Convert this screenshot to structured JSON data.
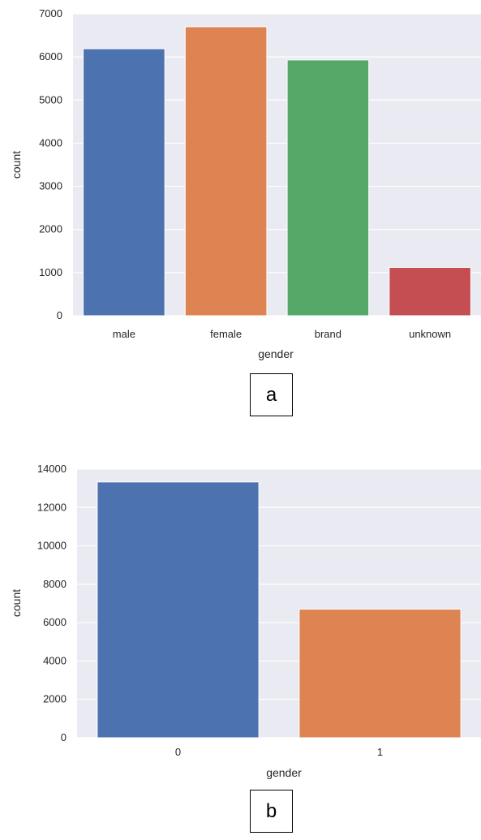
{
  "chart_data": [
    {
      "type": "bar",
      "caption": "a",
      "categories": [
        "male",
        "female",
        "brand",
        "unknown"
      ],
      "values": [
        6190,
        6700,
        5930,
        1120
      ],
      "colors": [
        "#4c72b0",
        "#dd8452",
        "#55a868",
        "#c44e52"
      ],
      "xlabel": "gender",
      "ylabel": "count",
      "ylim": [
        0,
        7000
      ],
      "yticks": [
        "0",
        "1000",
        "2000",
        "3000",
        "4000",
        "5000",
        "6000",
        "7000"
      ],
      "grid": true,
      "background": "#eaeaf2"
    },
    {
      "type": "bar",
      "caption": "b",
      "categories": [
        "0",
        "1"
      ],
      "values": [
        13330,
        6700
      ],
      "colors": [
        "#4c72b0",
        "#dd8452"
      ],
      "xlabel": "gender",
      "ylabel": "count",
      "ylim": [
        0,
        14000
      ],
      "yticks": [
        "0",
        "2000",
        "4000",
        "6000",
        "8000",
        "10000",
        "12000",
        "14000"
      ],
      "grid": true,
      "background": "#eaeaf2"
    }
  ]
}
